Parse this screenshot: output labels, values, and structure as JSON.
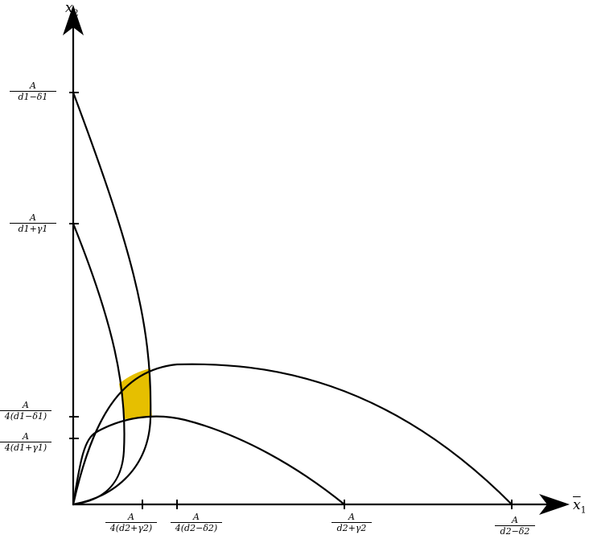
{
  "axes": {
    "x": {
      "symbol": "x",
      "subscript": "1"
    },
    "y": {
      "symbol": "x",
      "subscript": "2"
    }
  },
  "y_ticks": [
    {
      "num": "A",
      "den": "d1−δ1"
    },
    {
      "num": "A",
      "den": "d1+γ1"
    },
    {
      "num": "A",
      "den": "4(d1−δ1)"
    },
    {
      "num": "A",
      "den": "4(d1+γ1)"
    }
  ],
  "x_ticks": [
    {
      "num": "A",
      "den": "4(d2+γ2)"
    },
    {
      "num": "A",
      "den": "4(d2−δ2)"
    },
    {
      "num": "A",
      "den": "d2+γ2"
    },
    {
      "num": "A",
      "den": "d2−δ2"
    }
  ],
  "colors": {
    "highlight": "#e6bf00",
    "stroke": "#000000"
  }
}
